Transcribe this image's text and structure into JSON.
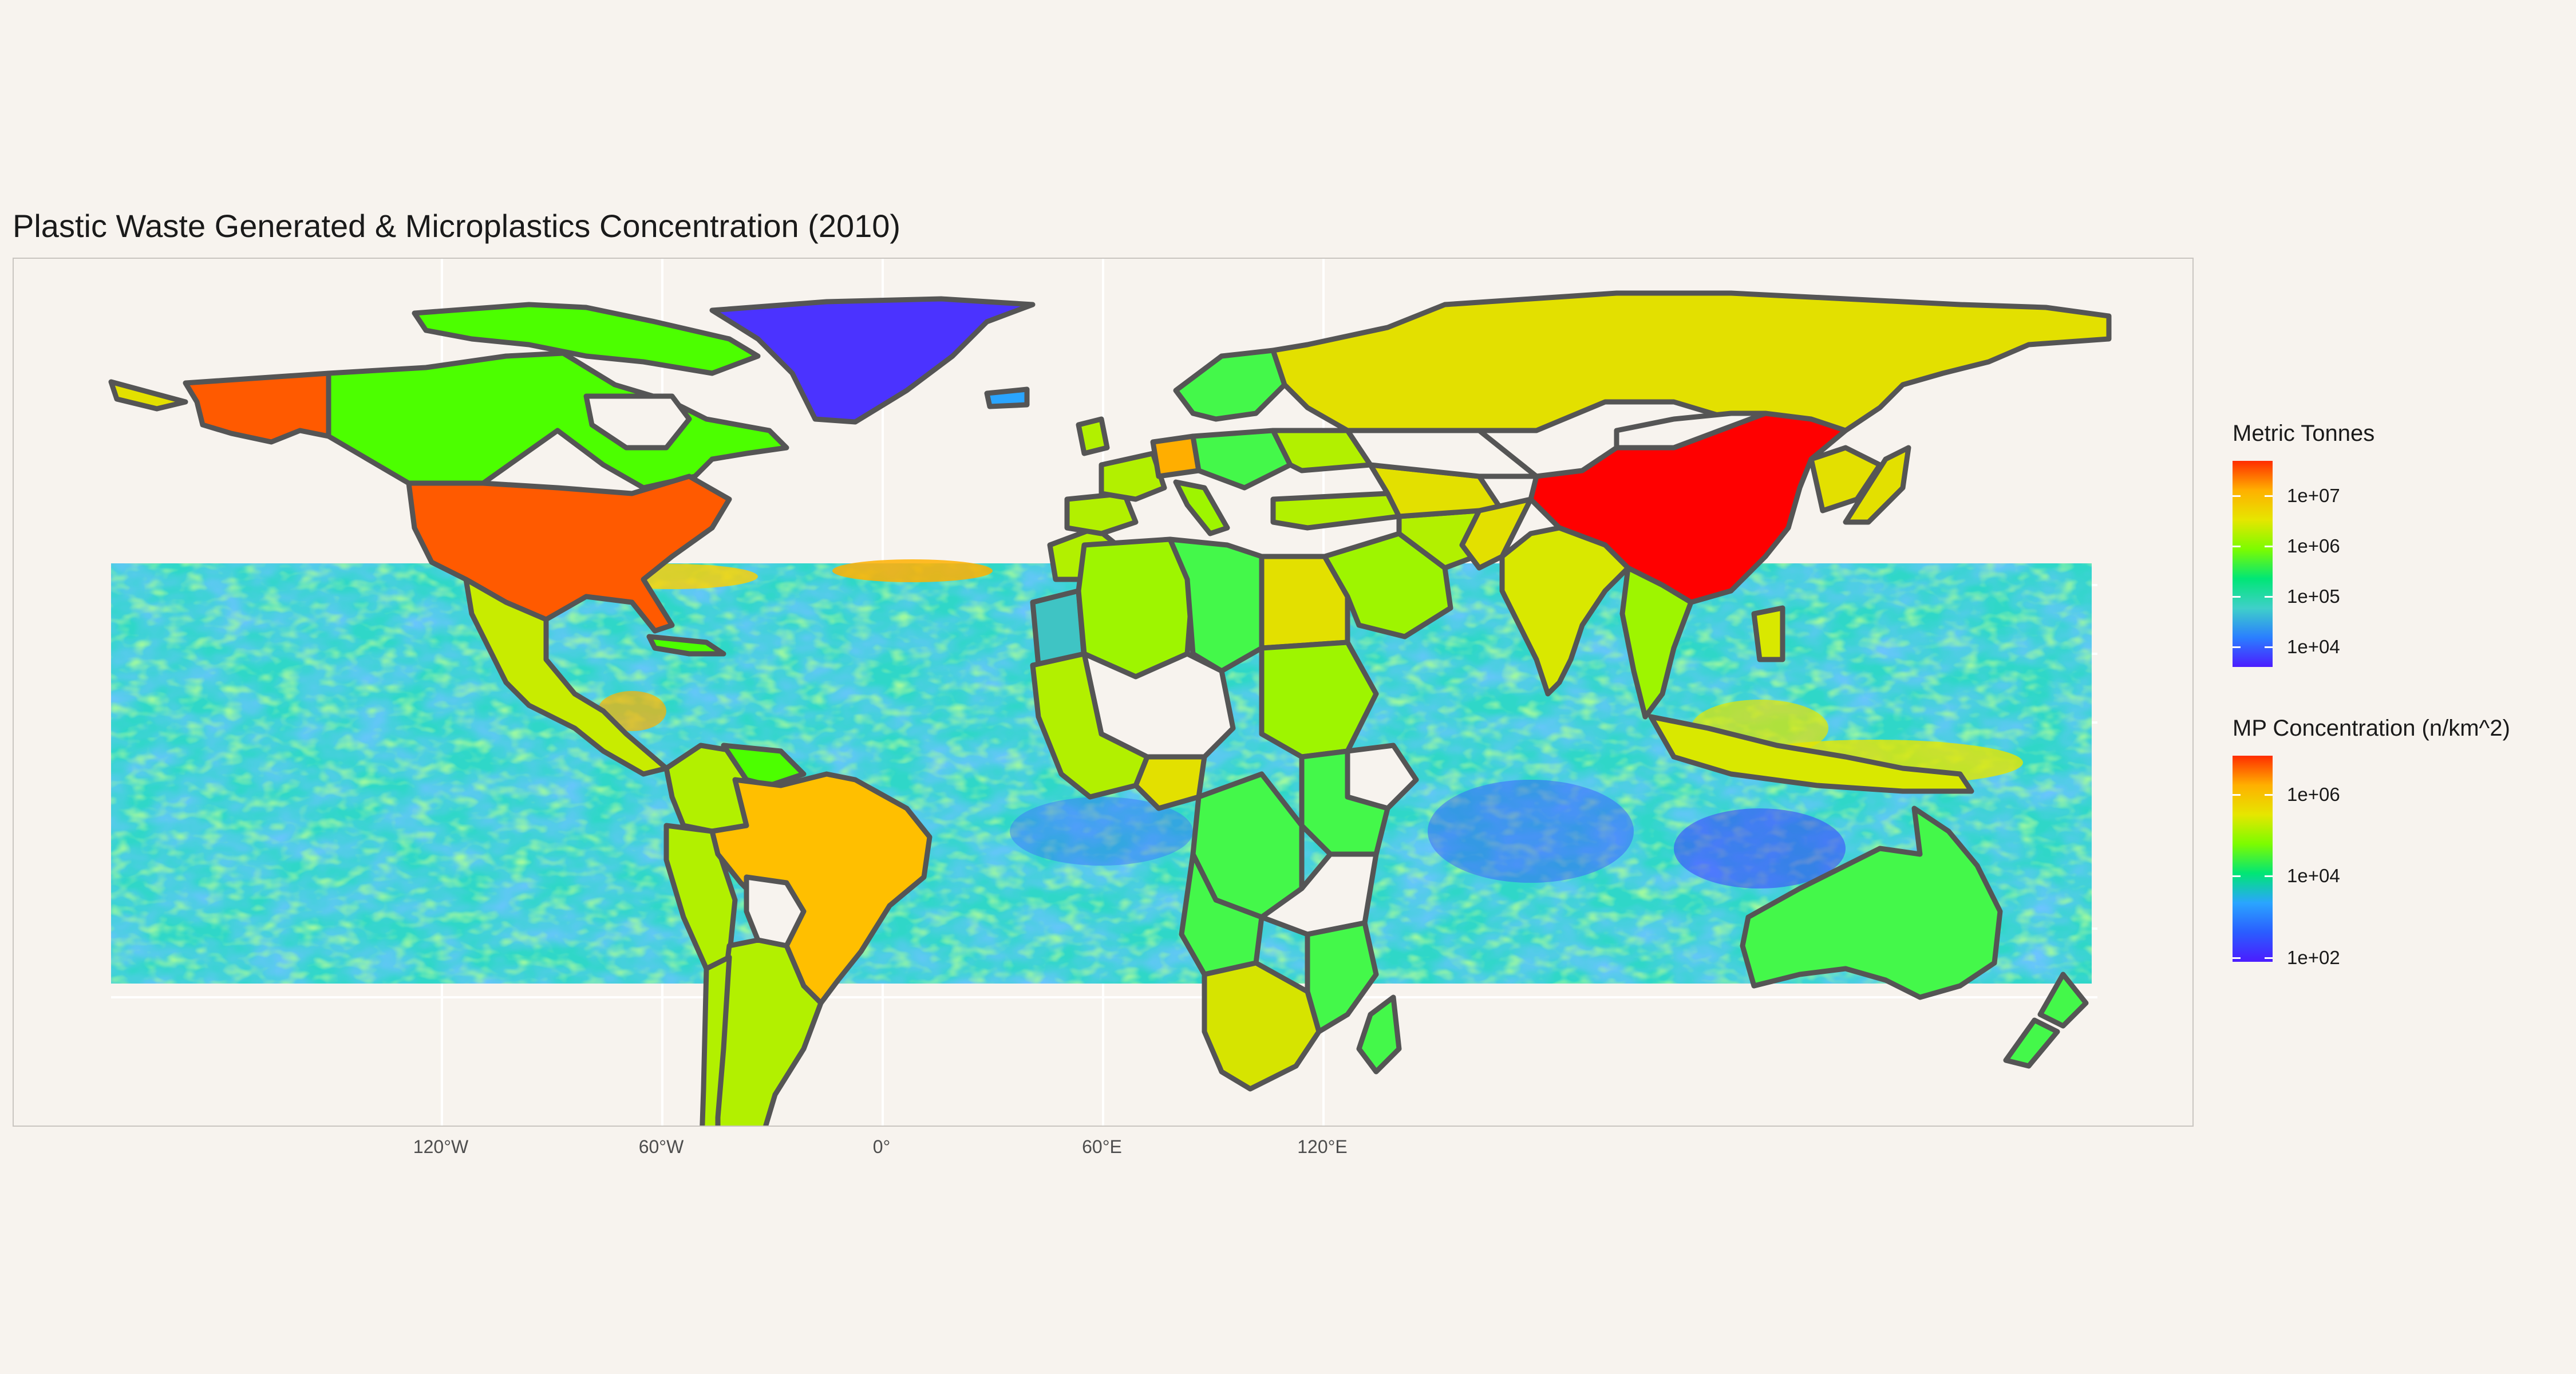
{
  "title": "Plastic Waste Generated & Microplastics Concentration (2010)",
  "x_axis": {
    "ticks": [
      "120°W",
      "60°W",
      "0°",
      "60°E",
      "120°E"
    ],
    "tick_lon": [
      -120,
      -60,
      0,
      60,
      120
    ]
  },
  "legend_tonnes": {
    "title": "Metric Tonnes",
    "ticks": [
      "1e+07",
      "1e+06",
      "1e+05",
      "1e+04"
    ],
    "tick_values": [
      10000000,
      1000000,
      100000,
      10000
    ],
    "colors": [
      "#ff2d00",
      "#ffb000",
      "#e6e600",
      "#7cfc00",
      "#00e676",
      "#3fd0c9",
      "#2a7fff",
      "#4b1cff"
    ]
  },
  "legend_mp": {
    "title": "MP Concentration (n/km^2)",
    "ticks": [
      "1e+06",
      "1e+04",
      "1e+02"
    ],
    "tick_values": [
      1000000,
      10000,
      100
    ],
    "colors": [
      "#ff2d00",
      "#ffb000",
      "#e6e600",
      "#7cfc00",
      "#00e676",
      "#2aa5ff",
      "#2a5dff",
      "#4b1cff"
    ]
  },
  "map_data": {
    "type": "choropleth_with_raster",
    "lon_range": [
      -180,
      180
    ],
    "lat_range": [
      -90,
      90
    ],
    "raster_lat_range": [
      -60,
      16
    ],
    "countries": [
      {
        "name": "China",
        "color": "#ff0000"
      },
      {
        "name": "United States",
        "color": "#ff5a00"
      },
      {
        "name": "Alaska",
        "color": "#ff5a00"
      },
      {
        "name": "Brazil",
        "color": "#ffbf00"
      },
      {
        "name": "Germany",
        "color": "#ffae00"
      },
      {
        "name": "Russia",
        "color": "#e3e000"
      },
      {
        "name": "Canada",
        "color": "#4cff00"
      },
      {
        "name": "Greenland",
        "color": "#4b33ff"
      },
      {
        "name": "Australia",
        "color": "#44f84a"
      },
      {
        "name": "India",
        "color": "#d9e800"
      },
      {
        "name": "Mexico",
        "color": "#c8ec00"
      },
      {
        "name": "Argentina",
        "color": "#b2f000"
      },
      {
        "name": "South Africa",
        "color": "#d6e400"
      },
      {
        "name": "Western Sahara",
        "color": "#3fc4c4"
      }
    ]
  }
}
